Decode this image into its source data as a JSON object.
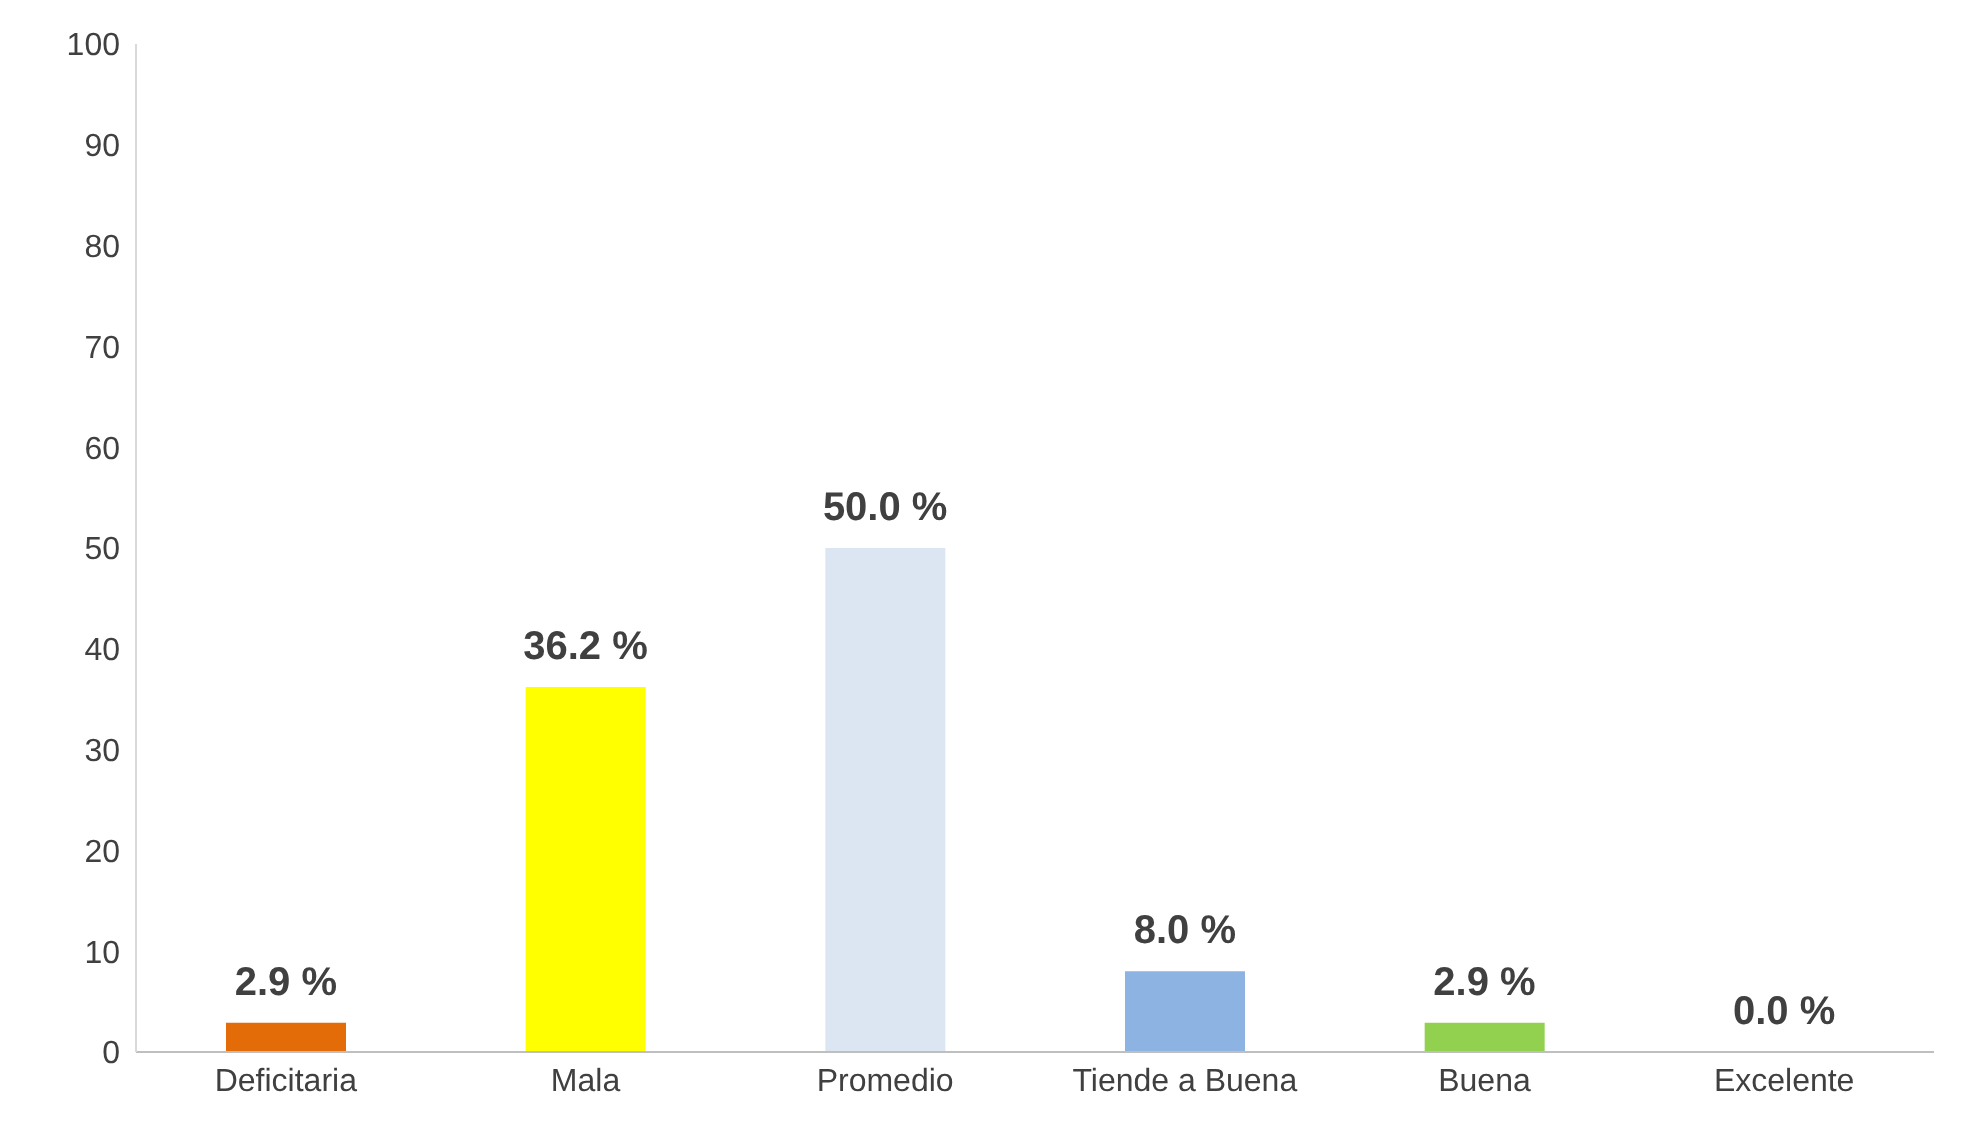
{
  "chart_data": {
    "type": "bar",
    "categories": [
      "Deficitaria",
      "Mala",
      "Promedio",
      "Tiende a Buena",
      "Buena",
      "Excelente"
    ],
    "values": [
      2.9,
      36.2,
      50.0,
      8.0,
      2.9,
      0.0
    ],
    "colors": [
      "#e36c09",
      "#ffff00",
      "#dce6f2",
      "#8db3e2",
      "#92d050",
      "#7f7f7f"
    ],
    "value_labels": [
      "2.9 %",
      "36.2 %",
      "50.0 %",
      "8.0 %",
      "2.9 %",
      "0.0 %"
    ],
    "ylim": [
      0,
      100
    ],
    "yticks": [
      0,
      10,
      20,
      30,
      40,
      50,
      60,
      70,
      80,
      90,
      100
    ],
    "grid": false
  }
}
